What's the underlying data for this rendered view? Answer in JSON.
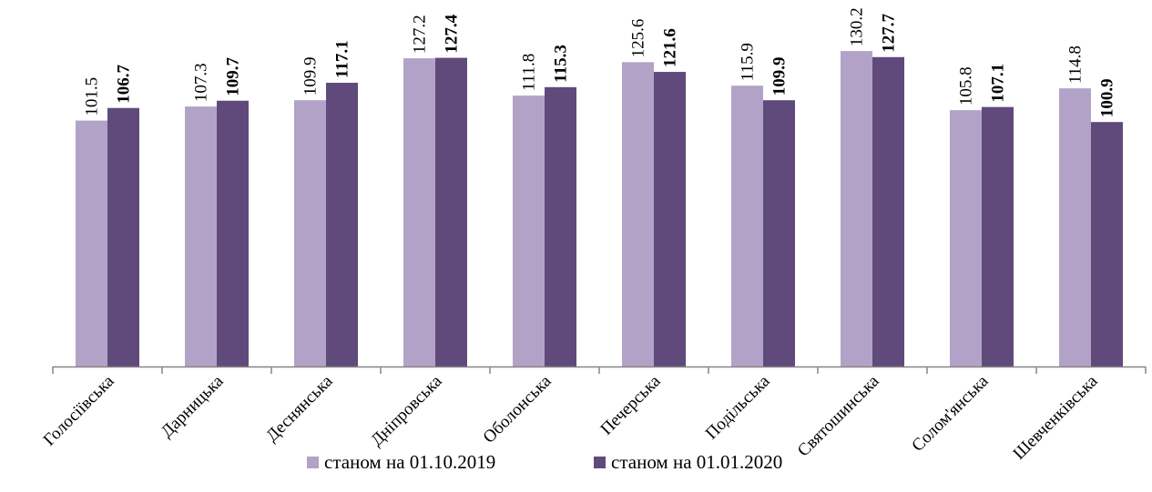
{
  "chart_data": {
    "type": "bar",
    "title": "",
    "xlabel": "",
    "ylabel": "",
    "categories": [
      "Голосіївська",
      "Дарницька",
      "Деснянська",
      "Дніпровська",
      "Оболонська",
      "Печерська",
      "Подільська",
      "Святошинська",
      "Солом'янська",
      "Шевченківська"
    ],
    "series": [
      {
        "name": "станом на 01.10.2019",
        "values": [
          101.5,
          107.3,
          109.9,
          127.2,
          111.8,
          125.6,
          115.9,
          130.2,
          105.8,
          114.8
        ],
        "value_labels": [
          "101.5",
          "107.3",
          "109.9",
          "127.2",
          "111.8",
          "125.6",
          "115.9",
          "130.2",
          "105.8",
          "114.8"
        ],
        "color": "#b3a2c7",
        "label_bold": false
      },
      {
        "name": "станом на 01.01.2020",
        "values": [
          106.7,
          109.7,
          117.1,
          127.4,
          115.3,
          121.6,
          109.9,
          127.7,
          107.1,
          100.9
        ],
        "value_labels": [
          "106.7",
          "109.7",
          "117.1",
          "127.4",
          "115.3",
          "121.6",
          "109.9",
          "127.7",
          "107.1",
          "100.9"
        ],
        "color": "#604a7b",
        "label_bold": true
      }
    ],
    "ylim": [
      0,
      137
    ],
    "grid": false,
    "legend": "bottom",
    "axis_color": "#868686"
  }
}
